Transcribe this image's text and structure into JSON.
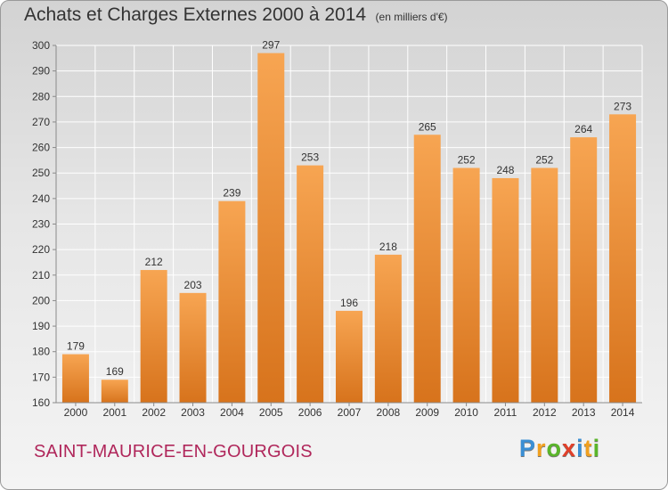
{
  "header": {
    "title": "Achats et Charges Externes 2000 à 2014",
    "unit": "(en milliers d'€)"
  },
  "footer": {
    "commune": "SAINT-MAURICE-EN-GOURGOIS",
    "logo_letters": [
      "P",
      "r",
      "o",
      "x",
      "i",
      "t",
      "i"
    ],
    "logo_colors": [
      "#3b8fd4",
      "#f0a020",
      "#5ab52a",
      "#e0402a",
      "#3b8fd4",
      "#f0a020",
      "#5ab52a"
    ]
  },
  "chart_data": {
    "type": "bar",
    "title": "Achats et Charges Externes 2000 à 2014",
    "categories": [
      "2000",
      "2001",
      "2002",
      "2003",
      "2004",
      "2005",
      "2006",
      "2007",
      "2008",
      "2009",
      "2010",
      "2011",
      "2012",
      "2013",
      "2014"
    ],
    "values": [
      179,
      169,
      212,
      203,
      239,
      297,
      253,
      196,
      218,
      265,
      252,
      248,
      252,
      264,
      273
    ],
    "ylim": [
      160,
      300
    ],
    "yticks": [
      160,
      170,
      180,
      190,
      200,
      210,
      220,
      230,
      240,
      250,
      260,
      270,
      280,
      290,
      300
    ],
    "grid": true,
    "colors": {
      "bar_light": "#f7a552",
      "bar_dark": "#d7731c",
      "grid": "#ffffff",
      "axis": "#8a8a8a"
    }
  }
}
